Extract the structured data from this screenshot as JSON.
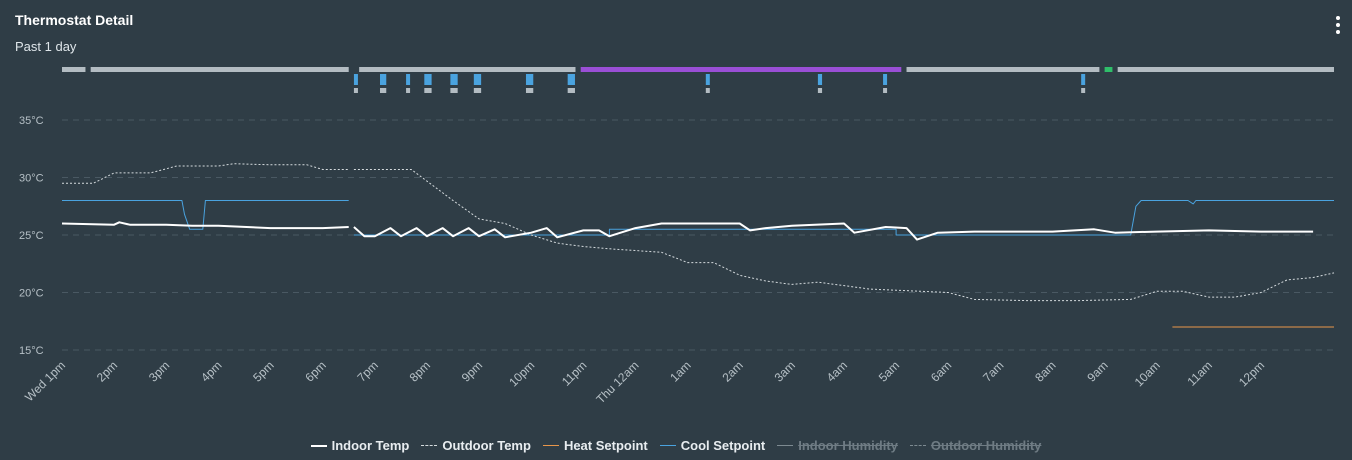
{
  "card": {
    "title": "Thermostat Detail",
    "subtitle": "Past 1 day",
    "menu_icon": "vertical-dots-icon"
  },
  "colors": {
    "indoor": "#ffffff",
    "outdoor": "#d5dbde",
    "heat": "#e8964a",
    "cool": "#4aa3df",
    "indoor_humidity": "#7d8a91",
    "outdoor_humidity": "#7d8a91",
    "state_idle": "#b3bcc2",
    "state_purple": "#9a4fd6",
    "state_green": "#2fbf6a",
    "event_cool": "#4aa3df",
    "grid": "#4a5963",
    "tick": "#b6c0c6"
  },
  "chart_data": {
    "type": "line",
    "x_unit": "hours since Wed 1pm",
    "xlim": [
      0,
      24.4
    ],
    "ylim": [
      14,
      37
    ],
    "yticks": [
      15,
      20,
      25,
      30,
      35
    ],
    "ytick_labels": [
      "15°C",
      "20°C",
      "25°C",
      "30°C",
      "35°C"
    ],
    "xticks": [
      0,
      1,
      2,
      3,
      4,
      5,
      6,
      7,
      8,
      9,
      10,
      11,
      12,
      13,
      14,
      15,
      16,
      17,
      18,
      19,
      20,
      21,
      22,
      23
    ],
    "xtick_labels": [
      "Wed 1pm",
      "2pm",
      "3pm",
      "4pm",
      "5pm",
      "6pm",
      "7pm",
      "8pm",
      "9pm",
      "10pm",
      "11pm",
      "Thu 12am",
      "1am",
      "2am",
      "3am",
      "4am",
      "5am",
      "6am",
      "7am",
      "8am",
      "9am",
      "10am",
      "11am",
      "12pm"
    ],
    "grid": true,
    "legend_position": "bottom",
    "series": [
      {
        "name": "Indoor Temp",
        "key": "indoor",
        "style": "solid",
        "visible": true,
        "segments": [
          [
            [
              0,
              26
            ],
            [
              1,
              25.9
            ],
            [
              1.1,
              26.1
            ],
            [
              1.3,
              25.9
            ],
            [
              2,
              25.9
            ],
            [
              2.5,
              25.8
            ],
            [
              3,
              25.8
            ],
            [
              4,
              25.6
            ],
            [
              5,
              25.6
            ],
            [
              5.5,
              25.7
            ]
          ],
          [
            [
              5.6,
              25.7
            ],
            [
              5.8,
              24.9
            ],
            [
              6,
              24.9
            ],
            [
              6.3,
              25.6
            ],
            [
              6.5,
              24.9
            ],
            [
              6.8,
              25.6
            ],
            [
              7,
              24.9
            ],
            [
              7.3,
              25.6
            ],
            [
              7.5,
              24.9
            ],
            [
              7.8,
              25.6
            ],
            [
              8,
              24.9
            ],
            [
              8.3,
              25.5
            ],
            [
              8.5,
              24.8
            ],
            [
              9,
              25.2
            ],
            [
              9.3,
              25.6
            ],
            [
              9.5,
              24.8
            ],
            [
              10,
              25.4
            ],
            [
              10.3,
              25.4
            ],
            [
              10.5,
              24.9
            ],
            [
              11,
              25.6
            ],
            [
              11.5,
              26
            ],
            [
              12,
              26
            ],
            [
              13,
              26
            ],
            [
              13.2,
              25.4
            ],
            [
              13.5,
              25.6
            ],
            [
              14,
              25.8
            ],
            [
              15,
              26
            ],
            [
              15.2,
              25.2
            ],
            [
              15.8,
              25.7
            ],
            [
              16.2,
              25.6
            ],
            [
              16.4,
              24.6
            ],
            [
              16.8,
              25.2
            ],
            [
              17.5,
              25.3
            ],
            [
              18.5,
              25.3
            ],
            [
              19,
              25.3
            ],
            [
              19.8,
              25.5
            ],
            [
              20.2,
              25.2
            ],
            [
              21,
              25.3
            ],
            [
              22,
              25.4
            ],
            [
              23,
              25.3
            ],
            [
              24,
              25.3
            ]
          ]
        ]
      },
      {
        "name": "Outdoor Temp",
        "key": "outdoor",
        "style": "dashed",
        "visible": true,
        "segments": [
          [
            [
              0,
              29.5
            ],
            [
              0.6,
              29.5
            ],
            [
              1,
              30.4
            ],
            [
              1.7,
              30.4
            ],
            [
              2.2,
              31
            ],
            [
              3,
              31
            ],
            [
              3.3,
              31.2
            ],
            [
              4,
              31.1
            ],
            [
              4.7,
              31.1
            ],
            [
              5,
              30.7
            ],
            [
              5.5,
              30.7
            ]
          ],
          [
            [
              5.6,
              30.7
            ],
            [
              6.7,
              30.7
            ],
            [
              7.5,
              28
            ],
            [
              8,
              26.4
            ],
            [
              8.5,
              26
            ],
            [
              9,
              25
            ],
            [
              9.5,
              24.3
            ],
            [
              10,
              24
            ],
            [
              10.5,
              23.8
            ],
            [
              11.5,
              23.5
            ],
            [
              12,
              22.6
            ],
            [
              12.5,
              22.6
            ],
            [
              13,
              21.5
            ],
            [
              13.5,
              21
            ],
            [
              14,
              20.7
            ],
            [
              14.5,
              20.9
            ],
            [
              15,
              20.6
            ],
            [
              15.5,
              20.3
            ],
            [
              16,
              20.2
            ],
            [
              17,
              20
            ],
            [
              17.5,
              19.4
            ],
            [
              18.5,
              19.3
            ],
            [
              19.5,
              19.3
            ],
            [
              20.5,
              19.4
            ],
            [
              21,
              20.1
            ],
            [
              21.5,
              20.1
            ],
            [
              22,
              19.6
            ],
            [
              22.5,
              19.6
            ],
            [
              23,
              20
            ],
            [
              23.5,
              21.1
            ],
            [
              24,
              21.3
            ],
            [
              24.4,
              21.7
            ]
          ]
        ]
      },
      {
        "name": "Heat Setpoint",
        "key": "heat",
        "style": "solid",
        "visible": true,
        "segments": [
          [
            [
              21.3,
              17
            ],
            [
              24.4,
              17
            ]
          ]
        ]
      },
      {
        "name": "Cool Setpoint",
        "key": "cool",
        "style": "solid",
        "visible": true,
        "segments": [
          [
            [
              0,
              28
            ],
            [
              2.3,
              28
            ],
            [
              2.35,
              26.8
            ],
            [
              2.45,
              25.5
            ],
            [
              2.7,
              25.5
            ],
            [
              2.75,
              28
            ],
            [
              5.5,
              28
            ]
          ],
          [
            [
              5.6,
              25
            ],
            [
              10.5,
              25
            ],
            [
              10.5,
              25.5
            ],
            [
              16,
              25.5
            ],
            [
              16,
              25
            ],
            [
              20.5,
              25
            ],
            [
              20.6,
              27.5
            ],
            [
              20.7,
              28
            ],
            [
              21.6,
              28
            ],
            [
              21.7,
              27.7
            ],
            [
              21.75,
              28
            ],
            [
              24.4,
              28
            ]
          ]
        ]
      },
      {
        "name": "Indoor Humidity",
        "key": "indoor_humidity",
        "style": "solid",
        "visible": false,
        "segments": []
      },
      {
        "name": "Outdoor Humidity",
        "key": "outdoor_humidity",
        "style": "dashed",
        "visible": false,
        "segments": []
      }
    ],
    "state_timeline": [
      {
        "start": 0,
        "end": 0.45,
        "state": "state_idle"
      },
      {
        "start": 0.55,
        "end": 5.5,
        "state": "state_idle"
      },
      {
        "start": 5.7,
        "end": 9.85,
        "state": "state_idle"
      },
      {
        "start": 9.95,
        "end": 16.1,
        "state": "state_purple"
      },
      {
        "start": 16.2,
        "end": 19.9,
        "state": "state_idle"
      },
      {
        "start": 20,
        "end": 20.15,
        "state": "state_green"
      },
      {
        "start": 20.25,
        "end": 24.4,
        "state": "state_idle"
      }
    ],
    "event_ticks": [
      {
        "x": 5.6,
        "w": 0.06
      },
      {
        "x": 6.1,
        "w": 0.12
      },
      {
        "x": 6.6,
        "w": 0.06
      },
      {
        "x": 6.95,
        "w": 0.14
      },
      {
        "x": 7.45,
        "w": 0.14
      },
      {
        "x": 7.9,
        "w": 0.14
      },
      {
        "x": 8.9,
        "w": 0.14
      },
      {
        "x": 9.7,
        "w": 0.14
      },
      {
        "x": 12.35,
        "w": 0.05
      },
      {
        "x": 14.5,
        "w": 0.08
      },
      {
        "x": 15.75,
        "w": 0.05
      },
      {
        "x": 19.55,
        "w": 0.05
      }
    ]
  },
  "legend": [
    {
      "label": "Indoor Temp",
      "key": "indoor",
      "style": "solid",
      "visible": true
    },
    {
      "label": "Outdoor Temp",
      "key": "outdoor",
      "style": "dashed",
      "visible": true
    },
    {
      "label": "Heat Setpoint",
      "key": "heat",
      "style": "solid",
      "visible": true
    },
    {
      "label": "Cool Setpoint",
      "key": "cool",
      "style": "solid",
      "visible": true
    },
    {
      "label": "Indoor Humidity",
      "key": "indoor_humidity",
      "style": "solid",
      "visible": false
    },
    {
      "label": "Outdoor Humidity",
      "key": "outdoor_humidity",
      "style": "dashed",
      "visible": false
    }
  ]
}
